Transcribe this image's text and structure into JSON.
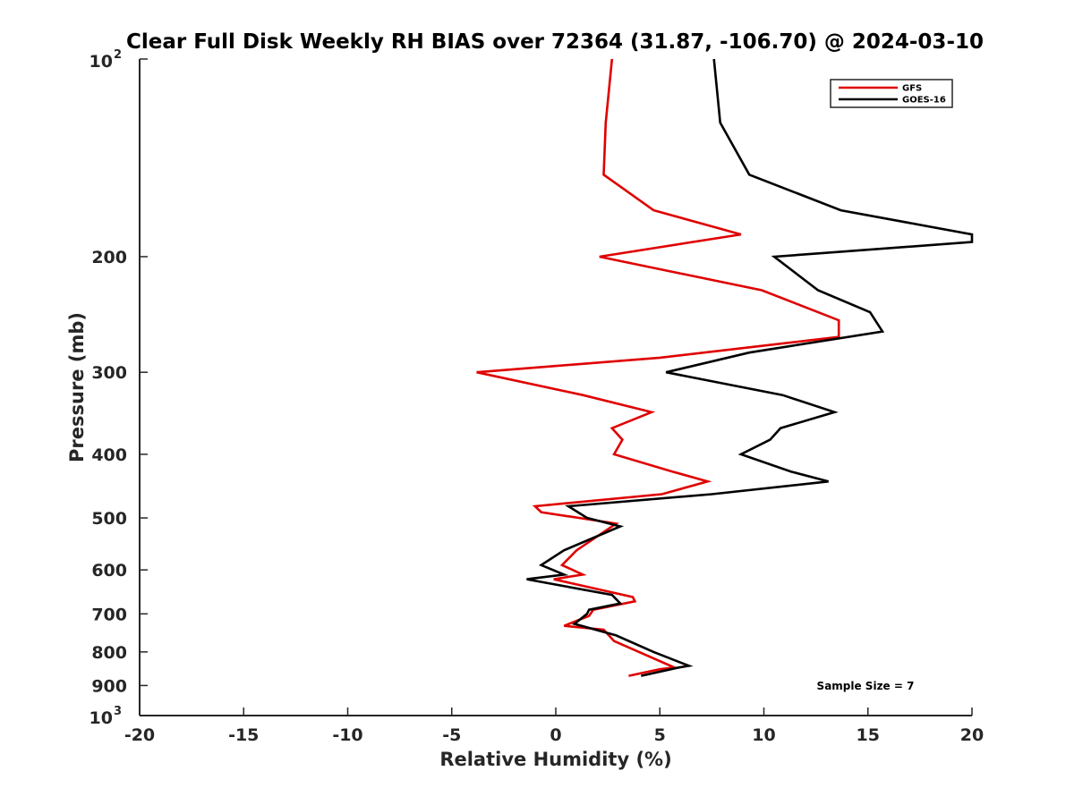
{
  "chart_data": {
    "type": "line",
    "title": "Clear Full Disk Weekly RH BIAS over 72364 (31.87, -106.70) @ 2024-03-10",
    "xlabel": "Relative Humidity (%)",
    "ylabel": "Pressure (mb)",
    "xlim": [
      -20,
      20
    ],
    "ylim": [
      100,
      1000
    ],
    "y_scale": "log",
    "y_reversed": true,
    "x_ticks": [
      "-20",
      "-15",
      "-10",
      "-5",
      "0",
      "5",
      "10",
      "15",
      "20"
    ],
    "y_ticks": [
      {
        "value": 100,
        "base": "10",
        "exp": "2"
      },
      {
        "value": 200,
        "label": "200"
      },
      {
        "value": 300,
        "label": "300"
      },
      {
        "value": 400,
        "label": "400"
      },
      {
        "value": 500,
        "label": "500"
      },
      {
        "value": 600,
        "label": "600"
      },
      {
        "value": 700,
        "label": "700"
      },
      {
        "value": 800,
        "label": "800"
      },
      {
        "value": 900,
        "label": "900"
      },
      {
        "value": 1000,
        "base": "10",
        "exp": "3"
      }
    ],
    "grid": false,
    "legend_position": "top-right",
    "annotation": "Sample Size = 7",
    "series": [
      {
        "name": "GFS",
        "color": "#e00000",
        "points": [
          [
            2.7,
            100
          ],
          [
            2.4,
            125
          ],
          [
            2.3,
            150
          ],
          [
            4.7,
            170
          ],
          [
            8.9,
            185
          ],
          [
            2.1,
            200
          ],
          [
            9.9,
            225
          ],
          [
            13.6,
            250
          ],
          [
            13.6,
            265
          ],
          [
            5.0,
            285
          ],
          [
            -3.8,
            300
          ],
          [
            1.3,
            325
          ],
          [
            4.6,
            345
          ],
          [
            2.7,
            365
          ],
          [
            3.2,
            380
          ],
          [
            2.8,
            400
          ],
          [
            5.6,
            425
          ],
          [
            7.3,
            440
          ],
          [
            5.1,
            460
          ],
          [
            -1.0,
            480
          ],
          [
            -0.7,
            490
          ],
          [
            2.9,
            510
          ],
          [
            1.0,
            560
          ],
          [
            0.3,
            590
          ],
          [
            1.3,
            610
          ],
          [
            -0.1,
            620
          ],
          [
            3.7,
            660
          ],
          [
            3.8,
            670
          ],
          [
            1.8,
            690
          ],
          [
            1.6,
            705
          ],
          [
            0.4,
            730
          ],
          [
            2.3,
            740
          ],
          [
            2.8,
            770
          ],
          [
            5.7,
            845
          ],
          [
            5.0,
            850
          ],
          [
            3.5,
            870
          ]
        ]
      },
      {
        "name": "GOES-16",
        "color": "#000000",
        "points": [
          [
            7.6,
            100
          ],
          [
            7.9,
            125
          ],
          [
            9.3,
            150
          ],
          [
            13.7,
            170
          ],
          [
            20.0,
            185
          ],
          [
            20.0,
            190
          ],
          [
            10.5,
            200
          ],
          [
            12.6,
            225
          ],
          [
            15.1,
            243
          ],
          [
            15.7,
            260
          ],
          [
            9.3,
            280
          ],
          [
            5.3,
            300
          ],
          [
            10.9,
            325
          ],
          [
            13.4,
            345
          ],
          [
            10.8,
            365
          ],
          [
            10.3,
            380
          ],
          [
            8.9,
            400
          ],
          [
            11.3,
            425
          ],
          [
            13.1,
            440
          ],
          [
            7.5,
            460
          ],
          [
            0.6,
            480
          ],
          [
            1.5,
            500
          ],
          [
            3.1,
            515
          ],
          [
            0.4,
            560
          ],
          [
            -0.7,
            590
          ],
          [
            0.4,
            610
          ],
          [
            -1.4,
            620
          ],
          [
            2.7,
            655
          ],
          [
            3.1,
            675
          ],
          [
            1.6,
            690
          ],
          [
            1.5,
            700
          ],
          [
            0.9,
            725
          ],
          [
            2.9,
            755
          ],
          [
            4.7,
            800
          ],
          [
            6.4,
            840
          ],
          [
            5.9,
            845
          ],
          [
            4.1,
            870
          ]
        ]
      }
    ]
  }
}
